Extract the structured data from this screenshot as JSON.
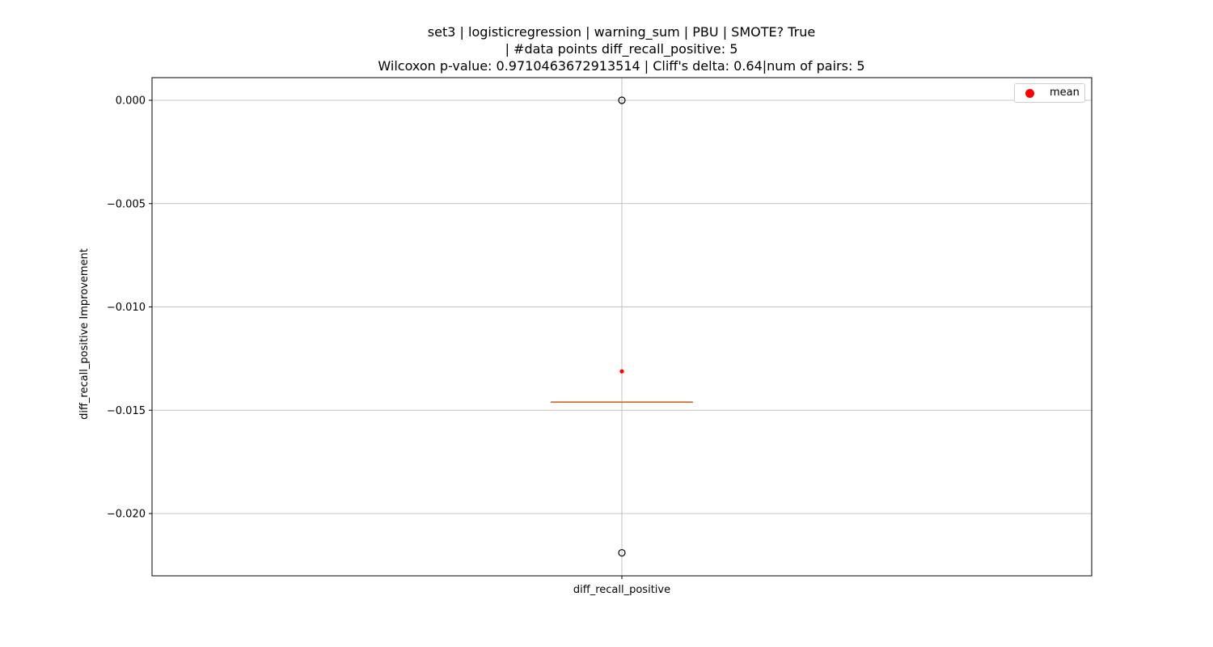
{
  "chart_data": {
    "type": "boxplot",
    "title_lines": [
      "set3 | logisticregression | warning_sum | PBU | SMOTE? True",
      "| #data points diff_recall_positive: 5",
      "Wilcoxon p-value: 0.9710463672913514 | Cliff's delta: 0.64|num of pairs: 5"
    ],
    "xlabel": "",
    "ylabel": "diff_recall_positive Improvement",
    "categories": [
      "diff_recall_positive"
    ],
    "ylim": [
      -0.023,
      0.0011
    ],
    "yticks": [
      0.0,
      -0.005,
      -0.01,
      -0.015,
      -0.02
    ],
    "ytick_labels": [
      "0.000",
      "−0.005",
      "−0.010",
      "−0.015",
      "−0.020"
    ],
    "box": {
      "q1": -0.0146,
      "median": -0.0146,
      "q3": -0.0146,
      "whisker_low": -0.0146,
      "whisker_high": -0.0146
    },
    "outliers": [
      0.0,
      -0.0219
    ],
    "mean": -0.01312,
    "grid": true,
    "legend": {
      "placement": "top-right",
      "entries": [
        "mean"
      ]
    },
    "colors": {
      "median": "#e07b39",
      "mean": "#ff0000",
      "outlier_edge": "#000000",
      "grid": "#b0b0b0"
    }
  }
}
